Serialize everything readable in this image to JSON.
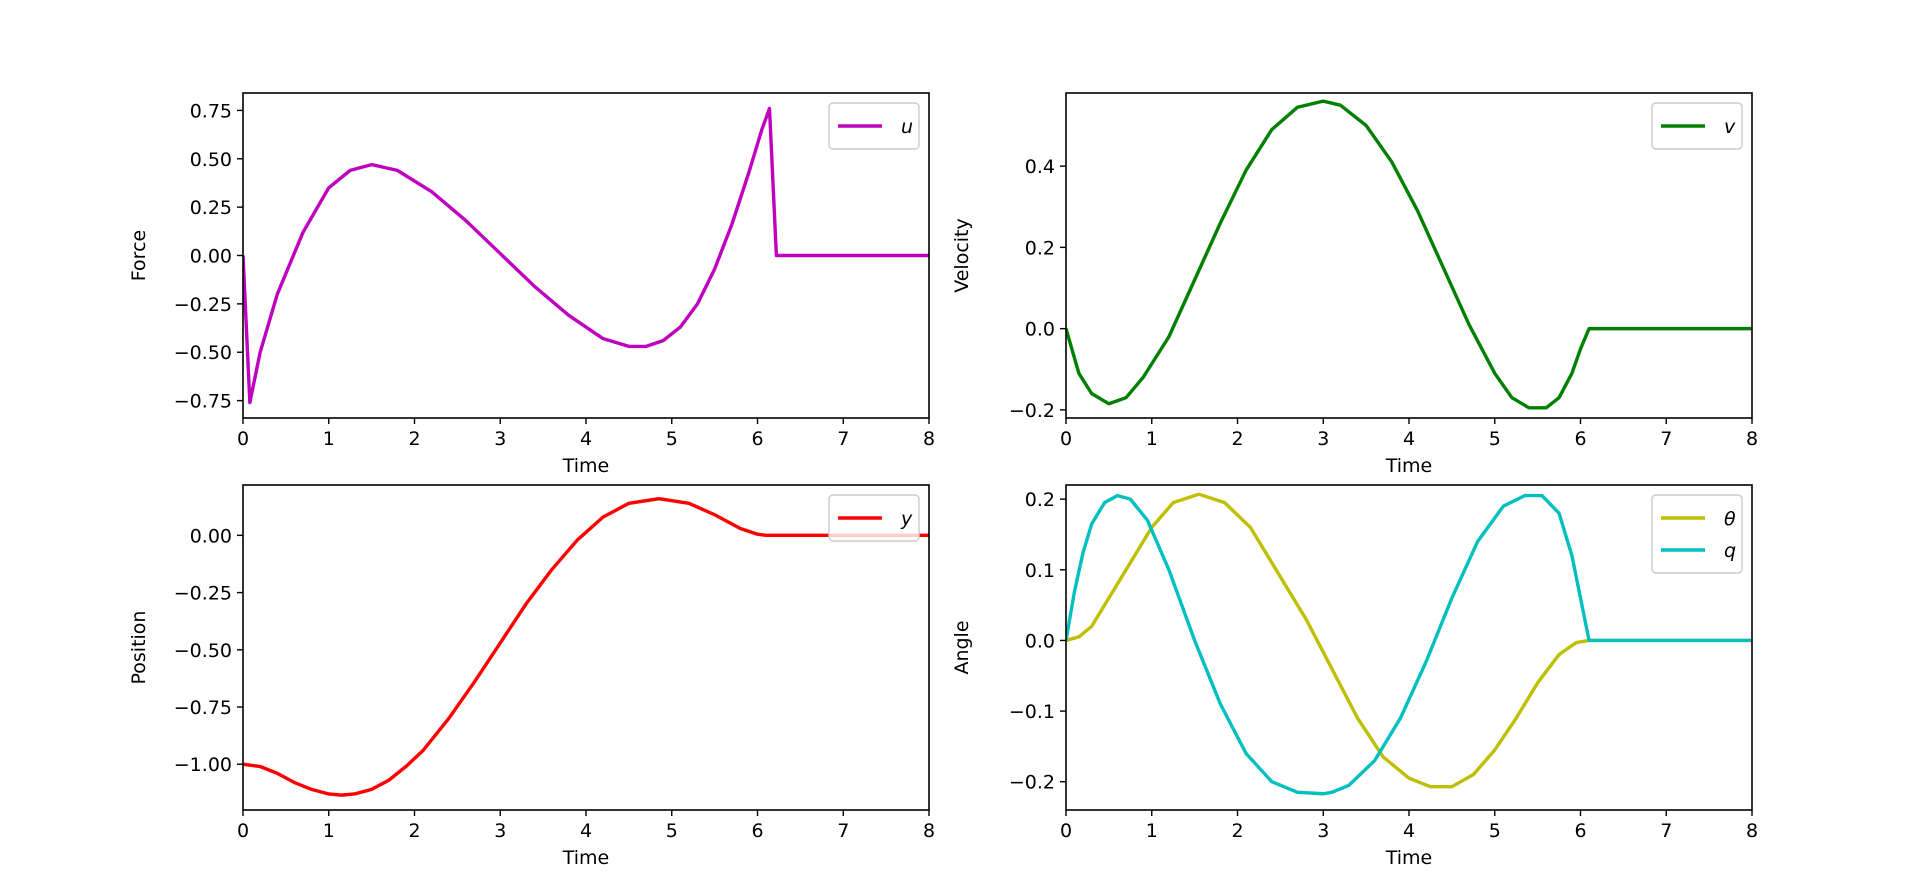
{
  "chart_data": [
    {
      "type": "line",
      "xlabel": "Time",
      "ylabel": "Force",
      "xlim": [
        0,
        8
      ],
      "ylim": [
        -0.84,
        0.84
      ],
      "xticks": [
        0,
        1,
        2,
        3,
        4,
        5,
        6,
        7,
        8
      ],
      "yticks": [
        -0.75,
        -0.5,
        -0.25,
        0.0,
        0.25,
        0.5,
        0.75
      ],
      "ytick_labels": [
        "−0.75",
        "−0.50",
        "−0.25",
        "0.00",
        "0.25",
        "0.50",
        "0.75"
      ],
      "grid": false,
      "legend": "top-right",
      "series": [
        {
          "name": "u",
          "color": "#bf00bf",
          "x": [
            0,
            0.08,
            0.2,
            0.4,
            0.7,
            1.0,
            1.25,
            1.5,
            1.8,
            2.2,
            2.6,
            3.0,
            3.4,
            3.8,
            4.2,
            4.5,
            4.7,
            4.9,
            5.1,
            5.3,
            5.5,
            5.7,
            5.9,
            6.05,
            6.14,
            6.22,
            6.5,
            7.0,
            7.5,
            8.0
          ],
          "values": [
            0.0,
            -0.76,
            -0.5,
            -0.2,
            0.12,
            0.35,
            0.44,
            0.47,
            0.44,
            0.33,
            0.18,
            0.01,
            -0.16,
            -0.31,
            -0.43,
            -0.47,
            -0.47,
            -0.44,
            -0.37,
            -0.25,
            -0.07,
            0.16,
            0.43,
            0.65,
            0.76,
            0.0,
            0.0,
            0.0,
            0.0,
            0.0
          ]
        }
      ]
    },
    {
      "type": "line",
      "xlabel": "Time",
      "ylabel": "Velocity",
      "xlim": [
        0,
        8
      ],
      "ylim": [
        -0.22,
        0.58
      ],
      "xticks": [
        0,
        1,
        2,
        3,
        4,
        5,
        6,
        7,
        8
      ],
      "yticks": [
        -0.2,
        0.0,
        0.2,
        0.4
      ],
      "ytick_labels": [
        "−0.2",
        "0.0",
        "0.2",
        "0.4"
      ],
      "grid": false,
      "legend": "top-right",
      "series": [
        {
          "name": "v",
          "color": "#008000",
          "x": [
            0,
            0.15,
            0.3,
            0.5,
            0.7,
            0.9,
            1.2,
            1.5,
            1.8,
            2.1,
            2.4,
            2.7,
            3.0,
            3.2,
            3.5,
            3.8,
            4.1,
            4.4,
            4.7,
            5.0,
            5.2,
            5.4,
            5.6,
            5.75,
            5.9,
            6.0,
            6.1,
            6.5,
            7.0,
            7.5,
            8.0
          ],
          "values": [
            0.0,
            -0.11,
            -0.16,
            -0.185,
            -0.17,
            -0.12,
            -0.02,
            0.12,
            0.26,
            0.39,
            0.49,
            0.545,
            0.56,
            0.55,
            0.5,
            0.41,
            0.29,
            0.15,
            0.01,
            -0.11,
            -0.17,
            -0.195,
            -0.195,
            -0.17,
            -0.11,
            -0.05,
            0.0,
            0.0,
            0.0,
            0.0,
            0.0
          ]
        }
      ]
    },
    {
      "type": "line",
      "xlabel": "Time",
      "ylabel": "Position",
      "xlim": [
        0,
        8
      ],
      "ylim": [
        -1.2,
        0.22
      ],
      "xticks": [
        0,
        1,
        2,
        3,
        4,
        5,
        6,
        7,
        8
      ],
      "yticks": [
        -1.0,
        -0.75,
        -0.5,
        -0.25,
        0.0
      ],
      "ytick_labels": [
        "−1.00",
        "−0.75",
        "−0.50",
        "−0.25",
        "0.00"
      ],
      "grid": false,
      "legend": "top-right",
      "series": [
        {
          "name": "y",
          "color": "#ff0000",
          "x": [
            0,
            0.2,
            0.4,
            0.6,
            0.8,
            1.0,
            1.15,
            1.3,
            1.5,
            1.7,
            1.9,
            2.1,
            2.4,
            2.7,
            3.0,
            3.3,
            3.6,
            3.9,
            4.2,
            4.5,
            4.85,
            5.2,
            5.5,
            5.8,
            6.0,
            6.1,
            6.5,
            7.0,
            7.5,
            8.0
          ],
          "values": [
            -1.0,
            -1.01,
            -1.04,
            -1.08,
            -1.11,
            -1.13,
            -1.135,
            -1.13,
            -1.11,
            -1.07,
            -1.01,
            -0.94,
            -0.8,
            -0.64,
            -0.47,
            -0.3,
            -0.15,
            -0.02,
            0.08,
            0.14,
            0.16,
            0.14,
            0.09,
            0.03,
            0.005,
            0.0,
            0.0,
            0.0,
            0.0,
            0.0
          ]
        }
      ]
    },
    {
      "type": "line",
      "xlabel": "Time",
      "ylabel": "Angle",
      "xlim": [
        0,
        8
      ],
      "ylim": [
        -0.24,
        0.22
      ],
      "xticks": [
        0,
        1,
        2,
        3,
        4,
        5,
        6,
        7,
        8
      ],
      "yticks": [
        -0.2,
        -0.1,
        0.0,
        0.1,
        0.2
      ],
      "ytick_labels": [
        "−0.2",
        "−0.1",
        "0.0",
        "0.1",
        "0.2"
      ],
      "grid": false,
      "legend": "top-right",
      "series": [
        {
          "name": "θ",
          "color": "#bfbf00",
          "x": [
            0,
            0.15,
            0.3,
            0.5,
            0.75,
            1.0,
            1.25,
            1.55,
            1.85,
            2.15,
            2.5,
            2.8,
            3.1,
            3.4,
            3.7,
            4.0,
            4.25,
            4.5,
            4.75,
            5.0,
            5.25,
            5.5,
            5.75,
            5.95,
            6.1,
            6.5,
            7.0,
            7.5,
            8.0
          ],
          "values": [
            0.0,
            0.005,
            0.02,
            0.06,
            0.11,
            0.16,
            0.195,
            0.207,
            0.195,
            0.16,
            0.09,
            0.03,
            -0.04,
            -0.11,
            -0.165,
            -0.195,
            -0.207,
            -0.207,
            -0.19,
            -0.155,
            -0.11,
            -0.06,
            -0.02,
            -0.003,
            0.0,
            0.0,
            0.0,
            0.0,
            0.0
          ]
        },
        {
          "name": "q",
          "color": "#00bfbf",
          "x": [
            0,
            0.1,
            0.2,
            0.3,
            0.45,
            0.6,
            0.75,
            0.95,
            1.2,
            1.5,
            1.8,
            2.1,
            2.4,
            2.7,
            3.0,
            3.1,
            3.3,
            3.6,
            3.9,
            4.2,
            4.5,
            4.8,
            5.1,
            5.35,
            5.55,
            5.75,
            5.9,
            6.0,
            6.1,
            6.5,
            7.0,
            7.5,
            8.0
          ],
          "values": [
            0.0,
            0.07,
            0.125,
            0.165,
            0.195,
            0.205,
            0.2,
            0.17,
            0.1,
            0.0,
            -0.09,
            -0.16,
            -0.2,
            -0.215,
            -0.217,
            -0.215,
            -0.205,
            -0.17,
            -0.11,
            -0.03,
            0.06,
            0.14,
            0.19,
            0.205,
            0.205,
            0.18,
            0.12,
            0.06,
            0.0,
            0.0,
            0.0,
            0.0,
            0.0
          ]
        }
      ]
    }
  ]
}
